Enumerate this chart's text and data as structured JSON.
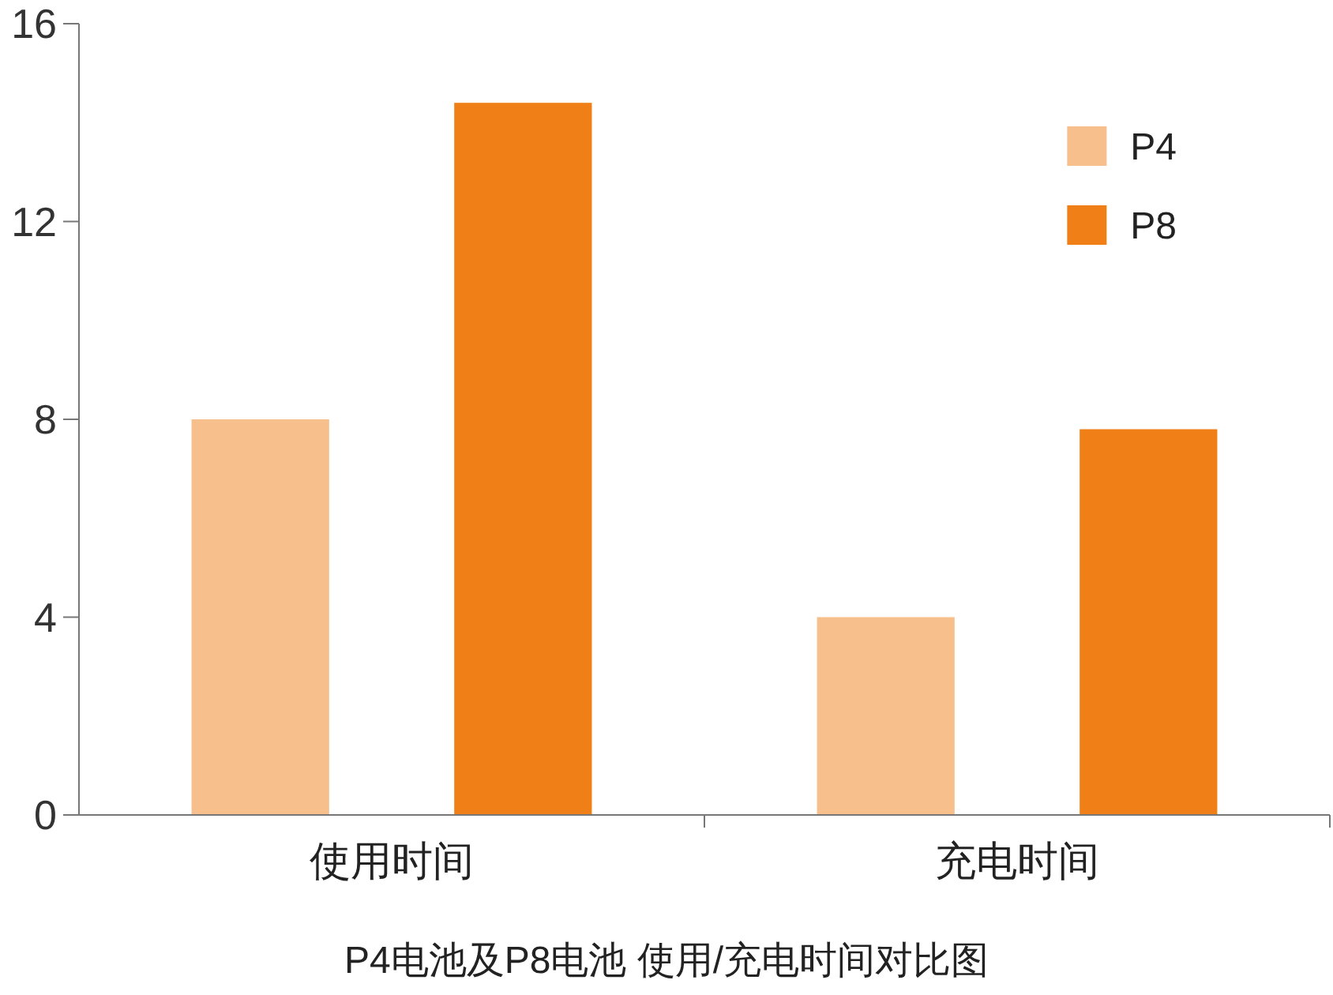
{
  "chart_data": {
    "type": "bar",
    "title": "P4电池及P8电池 使用/充电时间对比图",
    "categories": [
      "使用时间",
      "充电时间"
    ],
    "series": [
      {
        "name": "P4",
        "color": "#f6bf8b",
        "values": [
          8,
          4
        ]
      },
      {
        "name": "P8",
        "color": "#ef7f16",
        "values": [
          14.4,
          7.8
        ]
      }
    ],
    "ylim": [
      0,
      16
    ],
    "yticks": [
      0,
      4,
      8,
      12,
      16
    ],
    "grid": false,
    "legend": "top right"
  }
}
